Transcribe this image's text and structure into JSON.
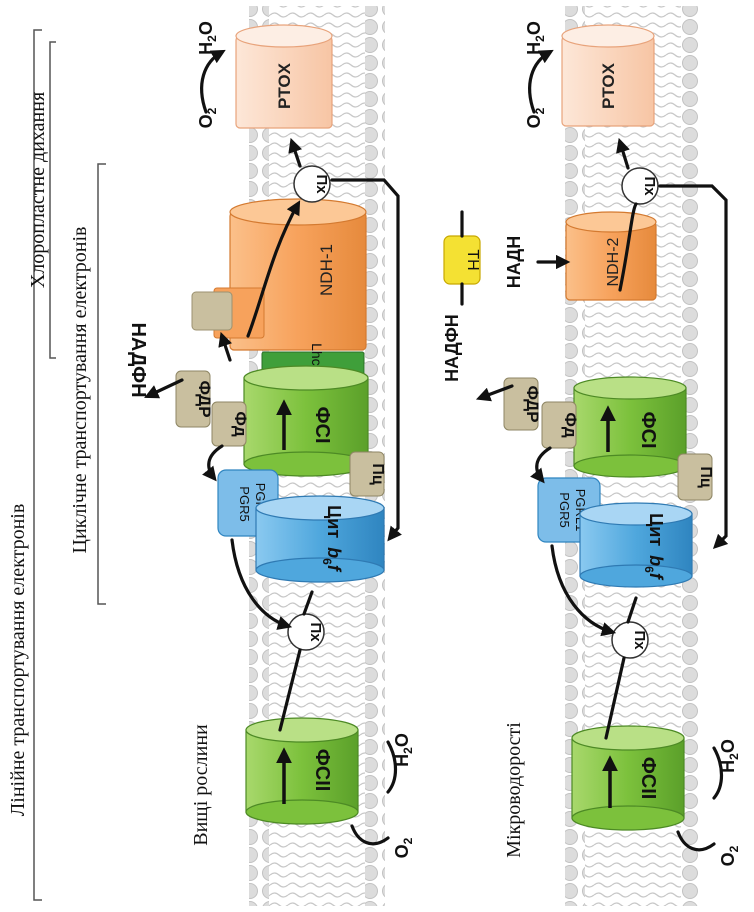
{
  "brackets": {
    "linear": "Лінійне транспортування електронів",
    "cyclic": "Циклічне транспортування електронів",
    "chlororespiration": "Хлоропластне дихання"
  },
  "panel_titles": {
    "higher_plants": "Вищі рослини",
    "microalgae": "Мікроводорості"
  },
  "complexes": {
    "psii": "ФСІІ",
    "psi": "ФСІ",
    "pq": "Пх",
    "cyt": "Цит",
    "cyt_b": "b",
    "cyt_sub6": "6",
    "cyt_f": "f",
    "pc": "Пц",
    "pgr5": "PGR5",
    "pgrl1": "PGRL1",
    "fd": "Фд",
    "fnr": "ФДР",
    "nadph": "НАДФН",
    "nadh": "НАДН",
    "ndh1": "NDH-1",
    "ndh2": "NDH-2",
    "lhca": "Lhca5,6",
    "ptox": "PTOX",
    "th": "TH",
    "o2": "O",
    "h2o_h": "H",
    "h2o_o": "O",
    "sub2": "2"
  },
  "colors": {
    "green": "#82c341",
    "blue": "#4fa7dd",
    "orange": "#f7a25c",
    "peach": "#fbd4bc",
    "tan": "#c9bf9f",
    "yellow": "#f4e133",
    "dark_green": "#3f8f2f"
  }
}
